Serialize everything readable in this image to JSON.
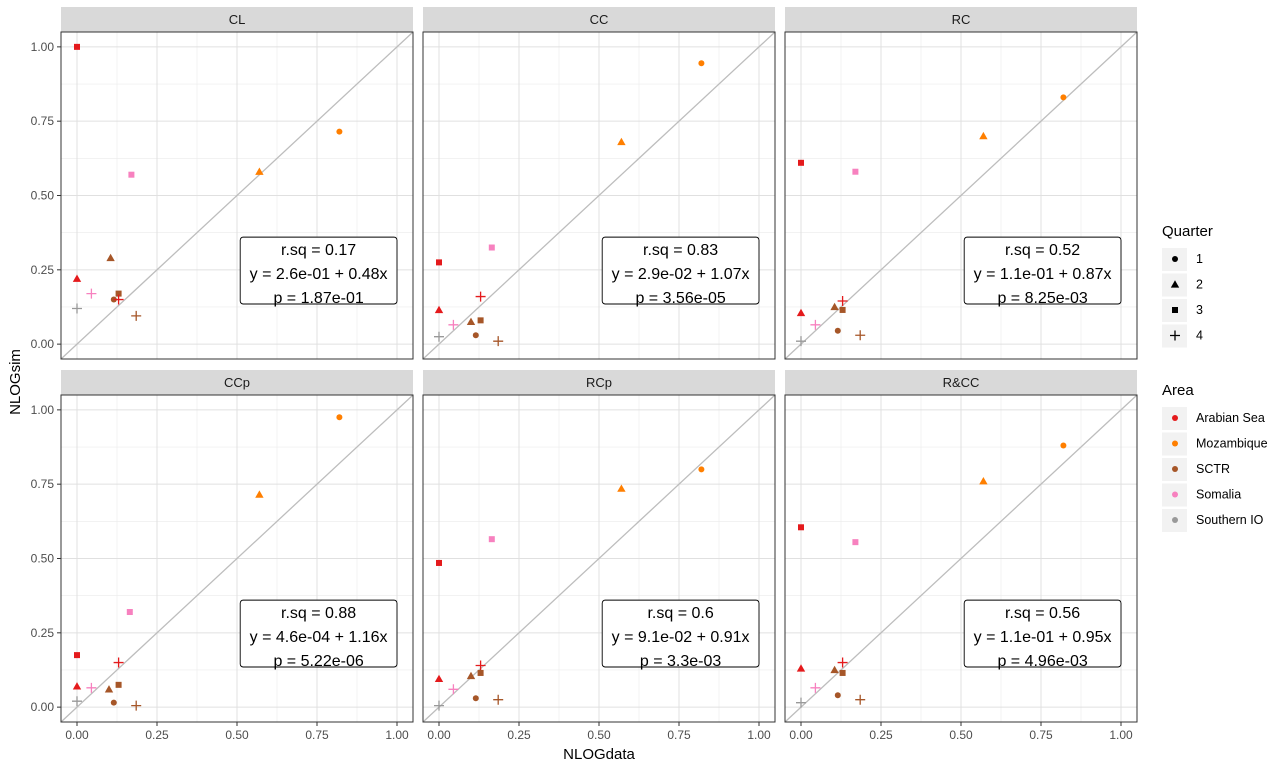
{
  "chart_data": {
    "type": "scatter",
    "xlabel": "NLOGdata",
    "ylabel": "NLOGsim",
    "xlim": [
      -0.05,
      1.05
    ],
    "ylim": [
      -0.05,
      1.05
    ],
    "x_ticks": [
      "0.00",
      "0.25",
      "0.50",
      "0.75",
      "1.00"
    ],
    "y_ticks": [
      "0.00",
      "0.25",
      "0.50",
      "0.75",
      "1.00"
    ],
    "grid": true,
    "reference_line": "y = x",
    "legend_placement": "right",
    "legend_quarter": {
      "title": "Quarter",
      "entries": [
        {
          "label": "1",
          "shape": "circle"
        },
        {
          "label": "2",
          "shape": "triangle"
        },
        {
          "label": "3",
          "shape": "square"
        },
        {
          "label": "4",
          "shape": "plus"
        }
      ]
    },
    "legend_area": {
      "title": "Area",
      "entries": [
        {
          "label": "Arabian Sea",
          "color": "#e41a1c"
        },
        {
          "label": "Mozambique",
          "color": "#ff7f00"
        },
        {
          "label": "SCTR",
          "color": "#a65628"
        },
        {
          "label": "Somalia",
          "color": "#f781bf"
        },
        {
          "label": "Southern IO",
          "color": "#999999"
        }
      ]
    },
    "panels": [
      {
        "title": "CL",
        "stats": [
          "r.sq = 0.17",
          "y = 2.6e-01 + 0.48x",
          "p = 1.87e-01"
        ],
        "points": [
          {
            "area": "Arabian Sea",
            "q": 3,
            "x": 0.0,
            "y": 1.0
          },
          {
            "area": "Mozambique",
            "q": 1,
            "x": 0.82,
            "y": 0.715
          },
          {
            "area": "Mozambique",
            "q": 2,
            "x": 0.57,
            "y": 0.58
          },
          {
            "area": "Somalia",
            "q": 3,
            "x": 0.17,
            "y": 0.57
          },
          {
            "area": "SCTR",
            "q": 2,
            "x": 0.105,
            "y": 0.29
          },
          {
            "area": "Arabian Sea",
            "q": 2,
            "x": 0.0,
            "y": 0.22
          },
          {
            "area": "Somalia",
            "q": 4,
            "x": 0.045,
            "y": 0.17
          },
          {
            "area": "SCTR",
            "q": 3,
            "x": 0.13,
            "y": 0.17
          },
          {
            "area": "SCTR",
            "q": 1,
            "x": 0.115,
            "y": 0.15
          },
          {
            "area": "Arabian Sea",
            "q": 4,
            "x": 0.13,
            "y": 0.15
          },
          {
            "area": "Southern IO",
            "q": 4,
            "x": 0.0,
            "y": 0.12
          },
          {
            "area": "SCTR",
            "q": 4,
            "x": 0.185,
            "y": 0.095
          }
        ]
      },
      {
        "title": "CC",
        "stats": [
          "r.sq = 0.83",
          "y = 2.9e-02 + 1.07x",
          "p = 3.56e-05"
        ],
        "points": [
          {
            "area": "Mozambique",
            "q": 1,
            "x": 0.82,
            "y": 0.945
          },
          {
            "area": "Mozambique",
            "q": 2,
            "x": 0.57,
            "y": 0.68
          },
          {
            "area": "Somalia",
            "q": 3,
            "x": 0.165,
            "y": 0.325
          },
          {
            "area": "Arabian Sea",
            "q": 3,
            "x": 0.0,
            "y": 0.275
          },
          {
            "area": "Arabian Sea",
            "q": 4,
            "x": 0.13,
            "y": 0.16
          },
          {
            "area": "Arabian Sea",
            "q": 2,
            "x": 0.0,
            "y": 0.115
          },
          {
            "area": "SCTR",
            "q": 3,
            "x": 0.13,
            "y": 0.08
          },
          {
            "area": "SCTR",
            "q": 2,
            "x": 0.1,
            "y": 0.075
          },
          {
            "area": "Somalia",
            "q": 4,
            "x": 0.045,
            "y": 0.065
          },
          {
            "area": "SCTR",
            "q": 1,
            "x": 0.115,
            "y": 0.03
          },
          {
            "area": "Southern IO",
            "q": 4,
            "x": 0.0,
            "y": 0.025
          },
          {
            "area": "SCTR",
            "q": 4,
            "x": 0.185,
            "y": 0.01
          }
        ]
      },
      {
        "title": "RC",
        "stats": [
          "r.sq = 0.52",
          "y = 1.1e-01 + 0.87x",
          "p = 8.25e-03"
        ],
        "points": [
          {
            "area": "Mozambique",
            "q": 1,
            "x": 0.82,
            "y": 0.83
          },
          {
            "area": "Mozambique",
            "q": 2,
            "x": 0.57,
            "y": 0.7
          },
          {
            "area": "Arabian Sea",
            "q": 3,
            "x": 0.0,
            "y": 0.61
          },
          {
            "area": "Somalia",
            "q": 3,
            "x": 0.17,
            "y": 0.58
          },
          {
            "area": "Arabian Sea",
            "q": 4,
            "x": 0.13,
            "y": 0.145
          },
          {
            "area": "SCTR",
            "q": 2,
            "x": 0.105,
            "y": 0.125
          },
          {
            "area": "SCTR",
            "q": 3,
            "x": 0.13,
            "y": 0.115
          },
          {
            "area": "Arabian Sea",
            "q": 2,
            "x": 0.0,
            "y": 0.105
          },
          {
            "area": "Somalia",
            "q": 4,
            "x": 0.045,
            "y": 0.065
          },
          {
            "area": "SCTR",
            "q": 1,
            "x": 0.115,
            "y": 0.045
          },
          {
            "area": "SCTR",
            "q": 4,
            "x": 0.185,
            "y": 0.03
          },
          {
            "area": "Southern IO",
            "q": 4,
            "x": 0.0,
            "y": 0.01
          }
        ]
      },
      {
        "title": "CCp",
        "stats": [
          "r.sq = 0.88",
          "y = 4.6e-04 + 1.16x",
          "p = 5.22e-06"
        ],
        "points": [
          {
            "area": "Mozambique",
            "q": 1,
            "x": 0.82,
            "y": 0.975
          },
          {
            "area": "Mozambique",
            "q": 2,
            "x": 0.57,
            "y": 0.715
          },
          {
            "area": "Somalia",
            "q": 3,
            "x": 0.165,
            "y": 0.32
          },
          {
            "area": "Arabian Sea",
            "q": 3,
            "x": 0.0,
            "y": 0.175
          },
          {
            "area": "Arabian Sea",
            "q": 4,
            "x": 0.13,
            "y": 0.15
          },
          {
            "area": "SCTR",
            "q": 3,
            "x": 0.13,
            "y": 0.075
          },
          {
            "area": "Arabian Sea",
            "q": 2,
            "x": 0.0,
            "y": 0.07
          },
          {
            "area": "Somalia",
            "q": 4,
            "x": 0.045,
            "y": 0.065
          },
          {
            "area": "SCTR",
            "q": 2,
            "x": 0.1,
            "y": 0.06
          },
          {
            "area": "Southern IO",
            "q": 4,
            "x": 0.0,
            "y": 0.02
          },
          {
            "area": "SCTR",
            "q": 1,
            "x": 0.115,
            "y": 0.015
          },
          {
            "area": "SCTR",
            "q": 4,
            "x": 0.185,
            "y": 0.005
          }
        ]
      },
      {
        "title": "RCp",
        "stats": [
          "r.sq = 0.6",
          "y = 9.1e-02 + 0.91x",
          "p = 3.3e-03"
        ],
        "points": [
          {
            "area": "Mozambique",
            "q": 1,
            "x": 0.82,
            "y": 0.8
          },
          {
            "area": "Mozambique",
            "q": 2,
            "x": 0.57,
            "y": 0.735
          },
          {
            "area": "Somalia",
            "q": 3,
            "x": 0.165,
            "y": 0.565
          },
          {
            "area": "Arabian Sea",
            "q": 3,
            "x": 0.0,
            "y": 0.485
          },
          {
            "area": "Arabian Sea",
            "q": 4,
            "x": 0.13,
            "y": 0.14
          },
          {
            "area": "SCTR",
            "q": 3,
            "x": 0.13,
            "y": 0.115
          },
          {
            "area": "SCTR",
            "q": 2,
            "x": 0.1,
            "y": 0.105
          },
          {
            "area": "Arabian Sea",
            "q": 2,
            "x": 0.0,
            "y": 0.095
          },
          {
            "area": "Somalia",
            "q": 4,
            "x": 0.045,
            "y": 0.06
          },
          {
            "area": "SCTR",
            "q": 1,
            "x": 0.115,
            "y": 0.03
          },
          {
            "area": "SCTR",
            "q": 4,
            "x": 0.185,
            "y": 0.025
          },
          {
            "area": "Southern IO",
            "q": 4,
            "x": 0.0,
            "y": 0.005
          }
        ]
      },
      {
        "title": "R&CC",
        "stats": [
          "r.sq = 0.56",
          "y = 1.1e-01 + 0.95x",
          "p = 4.96e-03"
        ],
        "points": [
          {
            "area": "Mozambique",
            "q": 1,
            "x": 0.82,
            "y": 0.88
          },
          {
            "area": "Mozambique",
            "q": 2,
            "x": 0.57,
            "y": 0.76
          },
          {
            "area": "Arabian Sea",
            "q": 3,
            "x": 0.0,
            "y": 0.605
          },
          {
            "area": "Somalia",
            "q": 3,
            "x": 0.17,
            "y": 0.555
          },
          {
            "area": "Arabian Sea",
            "q": 4,
            "x": 0.13,
            "y": 0.15
          },
          {
            "area": "Arabian Sea",
            "q": 2,
            "x": 0.0,
            "y": 0.13
          },
          {
            "area": "SCTR",
            "q": 2,
            "x": 0.105,
            "y": 0.125
          },
          {
            "area": "SCTR",
            "q": 3,
            "x": 0.13,
            "y": 0.115
          },
          {
            "area": "Somalia",
            "q": 4,
            "x": 0.045,
            "y": 0.065
          },
          {
            "area": "SCTR",
            "q": 1,
            "x": 0.115,
            "y": 0.04
          },
          {
            "area": "SCTR",
            "q": 4,
            "x": 0.185,
            "y": 0.025
          },
          {
            "area": "Southern IO",
            "q": 4,
            "x": 0.0,
            "y": 0.015
          }
        ]
      }
    ]
  }
}
